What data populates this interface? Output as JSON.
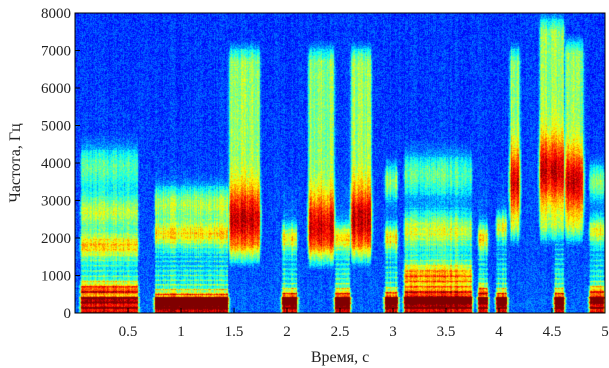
{
  "chart_data": {
    "type": "heatmap",
    "title": "",
    "xlabel": "Время, с",
    "ylabel": "Частота, Гц",
    "xlim": [
      0,
      5.0
    ],
    "ylim": [
      0,
      8000
    ],
    "x_ticks": [
      0.5,
      1,
      1.5,
      2,
      2.5,
      3,
      3.5,
      4,
      4.5,
      5
    ],
    "x_tick_labels": [
      "0.5",
      "1",
      "1.5",
      "2",
      "2.5",
      "3",
      "3.5",
      "4",
      "4.5",
      "5"
    ],
    "y_ticks": [
      0,
      1000,
      2000,
      3000,
      4000,
      5000,
      6000,
      7000,
      8000
    ],
    "y_tick_labels": [
      "0",
      "1000",
      "2000",
      "3000",
      "4000",
      "5000",
      "6000",
      "7000",
      "8000"
    ],
    "colormap": "jet",
    "grid": false,
    "colors": {
      "low": "#000080",
      "mid_low": "#0050ff",
      "mid": "#00d0ff",
      "mid_high": "#ffff00",
      "high": "#ff4000",
      "peak": "#800000"
    },
    "segments": [
      {
        "start": 0.05,
        "end": 0.6,
        "type": "voiced",
        "f0": 140,
        "formants": [
          600,
          1800,
          2700,
          3900
        ]
      },
      {
        "start": 0.75,
        "end": 1.45,
        "type": "voiced",
        "f0": 125,
        "formants": [
          350,
          2100,
          2900
        ]
      },
      {
        "start": 1.45,
        "end": 1.75,
        "type": "fricative",
        "band": [
          1500,
          7000
        ],
        "peak": 2500
      },
      {
        "start": 1.95,
        "end": 2.1,
        "type": "voiced",
        "f0": 130,
        "formants": [
          400,
          2000
        ]
      },
      {
        "start": 2.2,
        "end": 2.45,
        "type": "fricative",
        "band": [
          1500,
          7000
        ],
        "peak": 2300
      },
      {
        "start": 2.45,
        "end": 2.6,
        "type": "voiced",
        "f0": 130,
        "formants": [
          400,
          2000
        ]
      },
      {
        "start": 2.6,
        "end": 2.8,
        "type": "fricative",
        "band": [
          1500,
          7000
        ],
        "peak": 2500
      },
      {
        "start": 2.92,
        "end": 3.05,
        "type": "voiced",
        "f0": 135,
        "formants": [
          400,
          2000,
          3500
        ]
      },
      {
        "start": 3.1,
        "end": 3.75,
        "type": "voiced",
        "f0": 140,
        "formants": [
          450,
          1000,
          2200,
          3700
        ]
      },
      {
        "start": 3.8,
        "end": 3.9,
        "type": "voiced",
        "f0": 130,
        "formants": [
          500,
          2000
        ]
      },
      {
        "start": 3.97,
        "end": 4.08,
        "type": "voiced",
        "f0": 130,
        "formants": [
          400,
          2300
        ]
      },
      {
        "start": 4.1,
        "end": 4.2,
        "type": "fricative",
        "band": [
          2000,
          7000
        ],
        "peak": 3500
      },
      {
        "start": 4.38,
        "end": 4.62,
        "type": "fricative",
        "band": [
          2000,
          7800
        ],
        "peak": 3800
      },
      {
        "start": 4.52,
        "end": 4.62,
        "type": "voiced",
        "f0": 130,
        "formants": [
          400
        ]
      },
      {
        "start": 4.62,
        "end": 4.8,
        "type": "fricative",
        "band": [
          2000,
          7200
        ],
        "peak": 3500
      },
      {
        "start": 4.85,
        "end": 5.0,
        "type": "voiced",
        "f0": 140,
        "formants": [
          500,
          2200,
          3500
        ]
      }
    ]
  }
}
